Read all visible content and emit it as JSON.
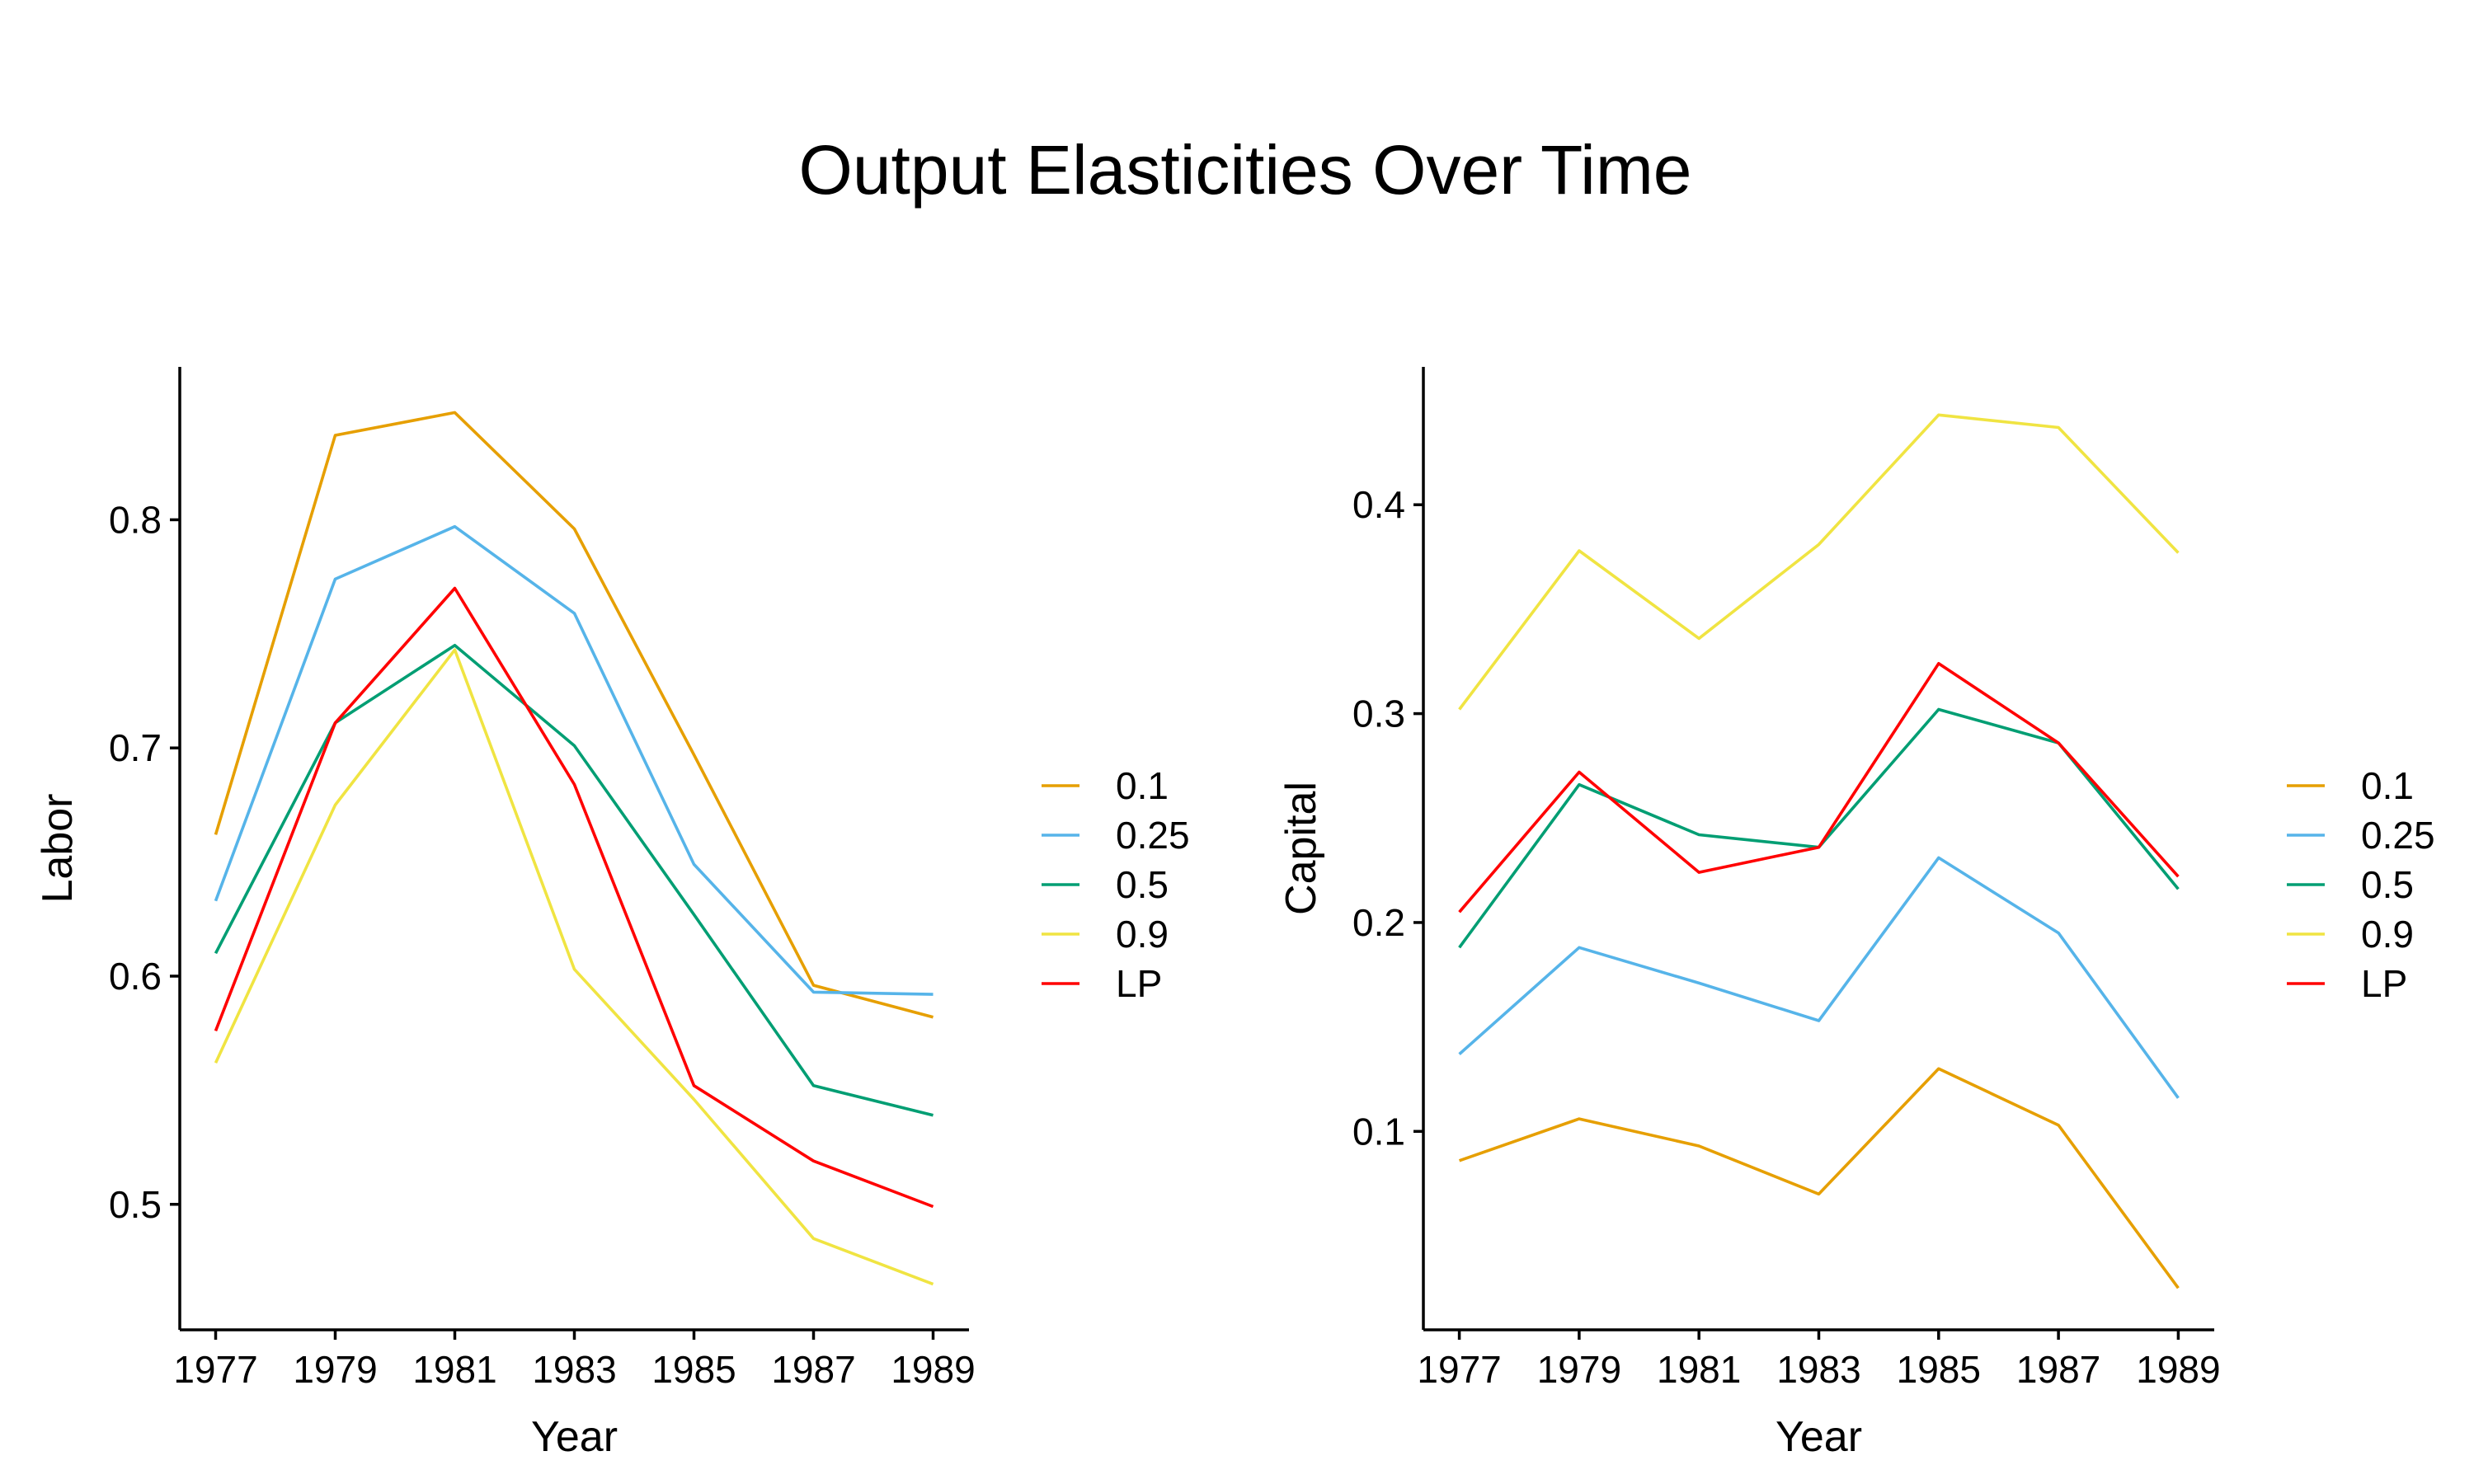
{
  "title": "Output Elasticities Over Time",
  "chart_data": [
    {
      "type": "line",
      "title": "Output Elasticities Over Time",
      "xlabel": "Year",
      "ylabel": "Labor",
      "x": [
        1977,
        1979,
        1981,
        1983,
        1985,
        1987,
        1989
      ],
      "xticks": [
        "1977",
        "1979",
        "1981",
        "1983",
        "1985",
        "1987",
        "1989"
      ],
      "xlim": [
        1976.4,
        1989.6
      ],
      "ylim": [
        0.445,
        0.867
      ],
      "yticks": [
        0.5,
        0.6,
        0.7,
        0.8
      ],
      "ytick_labels": [
        "0.5",
        "0.6",
        "0.7",
        "0.8"
      ],
      "grid": false,
      "legend_position": "right",
      "series": [
        {
          "name": "0.1",
          "color": "#E69F00",
          "values": [
            0.662,
            0.837,
            0.847,
            0.796,
            0.697,
            0.596,
            0.582
          ]
        },
        {
          "name": "0.25",
          "color": "#56B4E9",
          "values": [
            0.633,
            0.774,
            0.797,
            0.759,
            0.649,
            0.593,
            0.592
          ]
        },
        {
          "name": "0.5",
          "color": "#009E73",
          "values": [
            0.61,
            0.711,
            0.745,
            0.701,
            0.627,
            0.552,
            0.539
          ]
        },
        {
          "name": "0.9",
          "color": "#F0E442",
          "values": [
            0.562,
            0.675,
            0.743,
            0.603,
            0.546,
            0.485,
            0.465
          ]
        },
        {
          "name": "LP",
          "color": "#FF0000",
          "values": [
            0.576,
            0.711,
            0.77,
            0.684,
            0.552,
            0.519,
            0.499
          ]
        }
      ]
    },
    {
      "type": "line",
      "xlabel": "Year",
      "ylabel": "Capital",
      "x": [
        1977,
        1979,
        1981,
        1983,
        1985,
        1987,
        1989
      ],
      "xticks": [
        "1977",
        "1979",
        "1981",
        "1983",
        "1985",
        "1987",
        "1989"
      ],
      "xlim": [
        1976.4,
        1989.6
      ],
      "ylim": [
        0.005,
        0.466
      ],
      "yticks": [
        0.1,
        0.2,
        0.3,
        0.4
      ],
      "ytick_labels": [
        "0.1",
        "0.2",
        "0.3",
        "0.4"
      ],
      "grid": false,
      "legend_position": "right",
      "series": [
        {
          "name": "0.1",
          "color": "#E69F00",
          "values": [
            0.086,
            0.106,
            0.093,
            0.07,
            0.13,
            0.103,
            0.025
          ]
        },
        {
          "name": "0.25",
          "color": "#56B4E9",
          "values": [
            0.137,
            0.188,
            0.171,
            0.153,
            0.231,
            0.195,
            0.116
          ]
        },
        {
          "name": "0.5",
          "color": "#009E73",
          "values": [
            0.188,
            0.266,
            0.242,
            0.236,
            0.302,
            0.286,
            0.216
          ]
        },
        {
          "name": "0.9",
          "color": "#F0E442",
          "values": [
            0.302,
            0.378,
            0.336,
            0.381,
            0.443,
            0.437,
            0.377
          ]
        },
        {
          "name": "LP",
          "color": "#FF0000",
          "values": [
            0.205,
            0.272,
            0.224,
            0.236,
            0.324,
            0.286,
            0.222
          ]
        }
      ]
    }
  ]
}
